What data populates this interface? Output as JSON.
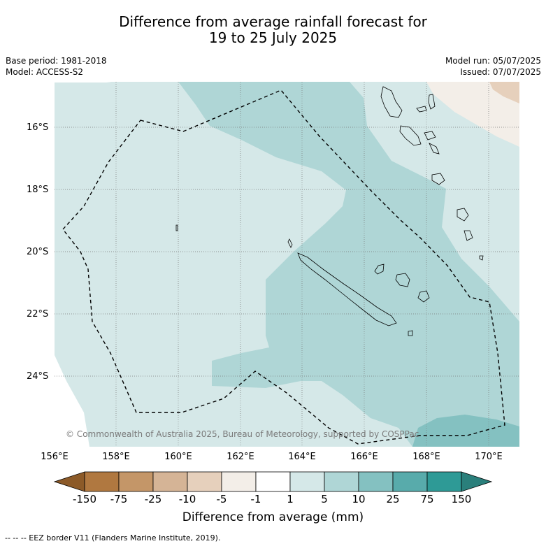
{
  "title_line1": "Difference from average rainfall forecast for",
  "title_line2": "19 to 25 July 2025",
  "base_period": "Base period: 1981-2018",
  "model": "Model: ACCESS-S2",
  "model_run": "Model run: 05/07/2025",
  "issued": "Issued: 07/07/2025",
  "lat_labels": [
    "16°S",
    "18°S",
    "20°S",
    "22°S",
    "24°S"
  ],
  "lon_labels": [
    "156°E",
    "158°E",
    "160°E",
    "162°E",
    "164°E",
    "166°E",
    "168°E",
    "170°E"
  ],
  "copyright": "© Commonwealth of Australia 2025, Bureau of Meteorology, supported by COSPPac",
  "colorbar": {
    "title": "Difference from average (mm)",
    "tick_labels": [
      "-150",
      "-75",
      "-25",
      "-10",
      "-5",
      "-1",
      "1",
      "5",
      "10",
      "25",
      "75",
      "150"
    ],
    "colors": [
      "#8c5a28",
      "#b07840",
      "#c49668",
      "#d5b496",
      "#e6d0bc",
      "#f3eee8",
      "#ffffff",
      "#d5e8e8",
      "#afd6d6",
      "#84c1c1",
      "#58abab",
      "#2e9a96",
      "#2a7f7b"
    ]
  },
  "footer": "--  --  -- EEZ border V11 (Flanders Marine Institute, 2019).",
  "colors": {
    "band_1_5": "#d5e8e8",
    "band_5_10": "#afd6d6",
    "band_10_25": "#84c1c1",
    "band_neg1_neg5": "#f3eee8",
    "band_neg5_neg10": "#e6d0bc"
  }
}
